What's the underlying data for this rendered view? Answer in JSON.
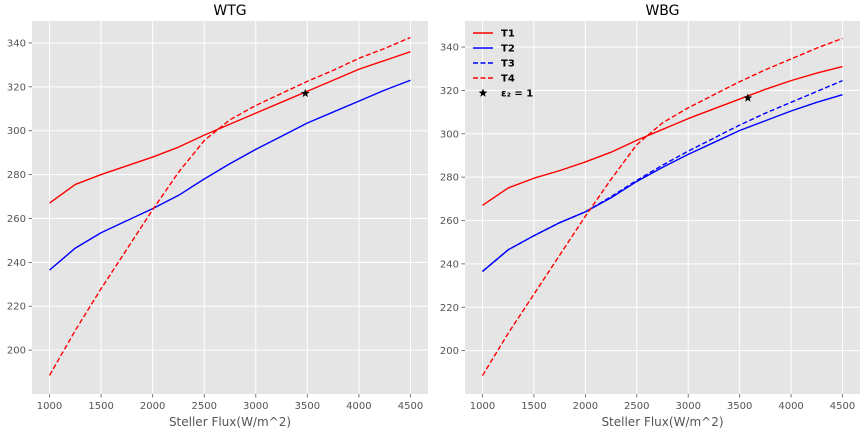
{
  "chart_data": [
    {
      "type": "line",
      "title": "WTG",
      "xlabel": "Steller Flux(W/m^2)",
      "ylabel": "",
      "xlim": [
        830,
        4670
      ],
      "ylim": [
        180,
        350
      ],
      "xticks": [
        1000,
        1500,
        2000,
        2500,
        3000,
        3500,
        4000,
        4500
      ],
      "yticks": [
        200,
        220,
        240,
        260,
        280,
        300,
        320,
        340
      ],
      "grid": true,
      "legend": null,
      "series": [
        {
          "name": "T1",
          "color": "#ff0000",
          "dash": "solid",
          "x": [
            1000,
            1250,
            1500,
            1750,
            2000,
            2250,
            2500,
            2750,
            3000,
            3250,
            3500,
            3750,
            4000,
            4250,
            4500
          ],
          "y": [
            267,
            275.5,
            280,
            284,
            288,
            292.5,
            298,
            303,
            308,
            313,
            318,
            323,
            328,
            332,
            336
          ]
        },
        {
          "name": "T2",
          "color": "#0000ff",
          "dash": "solid",
          "x": [
            1000,
            1250,
            1500,
            1750,
            2000,
            2250,
            2500,
            2750,
            3000,
            3250,
            3500,
            3750,
            4000,
            4250,
            4500
          ],
          "y": [
            236.5,
            246.5,
            253.5,
            259,
            264.5,
            270.5,
            278,
            285,
            291.5,
            297.5,
            303.5,
            308.5,
            313.5,
            318.5,
            323
          ]
        },
        {
          "name": "T4",
          "color": "#ff0000",
          "dash": "dashed",
          "x": [
            1000,
            1250,
            1500,
            1750,
            2000,
            2250,
            2500,
            2750,
            3000,
            3250,
            3500,
            3750,
            4000,
            4250,
            4500
          ],
          "y": [
            188.5,
            209,
            228,
            246,
            264,
            281,
            295.5,
            305,
            311.5,
            317,
            322.5,
            327.5,
            333,
            337.5,
            342.5
          ]
        },
        {
          "name": "",
          "color": "#000000",
          "marker": "star",
          "x": [
            3480
          ],
          "y": [
            317
          ]
        }
      ]
    },
    {
      "type": "line",
      "title": "WBG",
      "xlabel": "Steller Flux(W/m^2)",
      "ylabel": "",
      "xlim": [
        830,
        4670
      ],
      "ylim": [
        180,
        352
      ],
      "xticks": [
        1000,
        1500,
        2000,
        2500,
        3000,
        3500,
        4000,
        4500
      ],
      "yticks": [
        200,
        220,
        240,
        260,
        280,
        300,
        320,
        340
      ],
      "grid": true,
      "legend": "top-left",
      "series": [
        {
          "name": "T1",
          "color": "#ff0000",
          "dash": "solid",
          "x": [
            1000,
            1250,
            1500,
            1750,
            2000,
            2250,
            2500,
            2750,
            3000,
            3250,
            3500,
            3750,
            4000,
            4250,
            4500
          ],
          "y": [
            267,
            275,
            279.5,
            283,
            287,
            291.5,
            297,
            302,
            307,
            311.5,
            316,
            320.5,
            324.5,
            328,
            331
          ]
        },
        {
          "name": "T2",
          "color": "#0000ff",
          "dash": "solid",
          "x": [
            1000,
            1250,
            1500,
            1750,
            2000,
            2250,
            2500,
            2750,
            3000,
            3250,
            3500,
            3750,
            4000,
            4250,
            4500
          ],
          "y": [
            236.5,
            246.5,
            253,
            259,
            264,
            270.5,
            278,
            284.5,
            290.5,
            296,
            301.5,
            306,
            310.5,
            314.5,
            318
          ]
        },
        {
          "name": "T3",
          "color": "#0000ff",
          "dash": "dashed",
          "x": [
            1000,
            1250,
            1500,
            1750,
            2000,
            2250,
            2500,
            2750,
            3000,
            3250,
            3500,
            3750,
            4000,
            4250,
            4500
          ],
          "y": [
            236.5,
            246.5,
            253,
            259,
            264,
            271,
            278.5,
            285.5,
            292,
            298,
            304,
            309.5,
            314.5,
            319.5,
            324.5
          ]
        },
        {
          "name": "T4",
          "color": "#ff0000",
          "dash": "dashed",
          "x": [
            1000,
            1250,
            1500,
            1750,
            2000,
            2250,
            2500,
            2750,
            3000,
            3250,
            3500,
            3750,
            4000,
            4250,
            4500
          ],
          "y": [
            188.5,
            208,
            226,
            244,
            262,
            279,
            295,
            305,
            312,
            318,
            324,
            329.5,
            334.5,
            339.5,
            344
          ]
        },
        {
          "name": "ε₂ = 1",
          "color": "#000000",
          "marker": "star",
          "x": [
            3580
          ],
          "y": [
            316.5
          ]
        }
      ]
    }
  ]
}
